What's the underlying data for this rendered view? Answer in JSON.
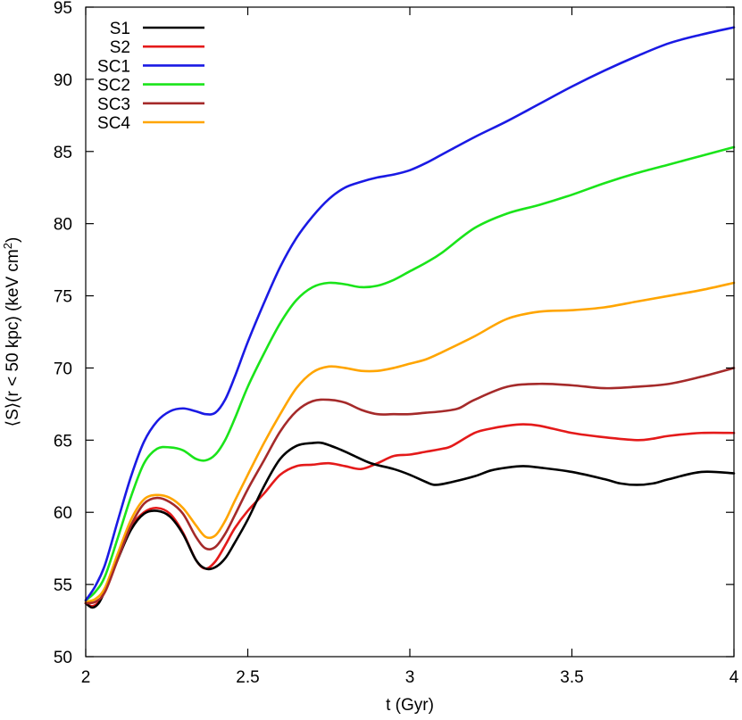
{
  "chart_data": {
    "type": "line",
    "xlabel": "t (Gyr)",
    "ylabel": "⟨S⟩(r < 50 kpc) (keV cm",
    "ylabel_sup": "2",
    "ylabel_close": ")",
    "xlim": [
      2,
      4
    ],
    "ylim": [
      50,
      95
    ],
    "xticks": [
      2,
      2.5,
      3,
      3.5,
      4
    ],
    "xtick_labels": [
      "2",
      "2.5",
      "3",
      "3.5",
      "4"
    ],
    "yticks": [
      50,
      55,
      60,
      65,
      70,
      75,
      80,
      85,
      90,
      95
    ],
    "ytick_labels": [
      "50",
      "55",
      "60",
      "65",
      "70",
      "75",
      "80",
      "85",
      "90",
      "95"
    ],
    "grid": false,
    "legend_position": "top-left",
    "series": [
      {
        "name": "S1",
        "color": "#000000",
        "x": [
          2.0,
          2.02,
          2.04,
          2.06,
          2.1,
          2.14,
          2.18,
          2.22,
          2.26,
          2.3,
          2.34,
          2.37,
          2.4,
          2.43,
          2.46,
          2.5,
          2.55,
          2.6,
          2.65,
          2.7,
          2.73,
          2.78,
          2.82,
          2.88,
          2.95,
          3.0,
          3.05,
          3.08,
          3.13,
          3.2,
          3.25,
          3.3,
          3.35,
          3.4,
          3.5,
          3.6,
          3.65,
          3.7,
          3.75,
          3.8,
          3.9,
          4.0
        ],
        "y": [
          53.7,
          53.4,
          53.7,
          54.6,
          56.8,
          58.8,
          59.9,
          60.1,
          59.7,
          58.5,
          56.7,
          56.1,
          56.2,
          56.8,
          57.9,
          59.5,
          61.8,
          63.7,
          64.6,
          64.8,
          64.8,
          64.4,
          64.0,
          63.4,
          63.0,
          62.6,
          62.1,
          61.9,
          62.1,
          62.5,
          62.9,
          63.1,
          63.2,
          63.1,
          62.8,
          62.3,
          62.0,
          61.9,
          62.0,
          62.3,
          62.8,
          62.7
        ]
      },
      {
        "name": "S2",
        "color": "#e41a1a",
        "x": [
          2.0,
          2.02,
          2.04,
          2.06,
          2.1,
          2.14,
          2.18,
          2.22,
          2.26,
          2.3,
          2.34,
          2.37,
          2.4,
          2.43,
          2.46,
          2.5,
          2.55,
          2.6,
          2.65,
          2.7,
          2.75,
          2.8,
          2.85,
          2.9,
          2.95,
          3.0,
          3.05,
          3.1,
          3.13,
          3.2,
          3.25,
          3.3,
          3.35,
          3.4,
          3.5,
          3.6,
          3.7,
          3.75,
          3.8,
          3.9,
          4.0
        ],
        "y": [
          53.7,
          53.5,
          53.8,
          54.7,
          57.0,
          59.0,
          60.0,
          60.3,
          59.9,
          58.6,
          56.7,
          56.1,
          56.6,
          57.7,
          58.9,
          60.1,
          61.3,
          62.6,
          63.2,
          63.3,
          63.4,
          63.2,
          63.0,
          63.4,
          63.9,
          64.0,
          64.2,
          64.4,
          64.6,
          65.5,
          65.8,
          66.0,
          66.1,
          66.0,
          65.5,
          65.2,
          65.0,
          65.1,
          65.3,
          65.5,
          65.5
        ]
      },
      {
        "name": "SC1",
        "color": "#1a1ae4",
        "x": [
          2.0,
          2.03,
          2.06,
          2.1,
          2.14,
          2.18,
          2.22,
          2.26,
          2.3,
          2.34,
          2.37,
          2.4,
          2.43,
          2.46,
          2.5,
          2.55,
          2.6,
          2.65,
          2.7,
          2.75,
          2.8,
          2.85,
          2.9,
          2.95,
          3.0,
          3.05,
          3.1,
          3.2,
          3.3,
          3.4,
          3.5,
          3.6,
          3.7,
          3.8,
          3.9,
          4.0
        ],
        "y": [
          53.9,
          54.9,
          56.4,
          59.5,
          62.5,
          64.9,
          66.3,
          67.0,
          67.2,
          67.0,
          66.8,
          66.9,
          67.8,
          69.4,
          71.8,
          74.5,
          77.0,
          79.0,
          80.5,
          81.7,
          82.5,
          82.9,
          83.2,
          83.4,
          83.7,
          84.2,
          84.8,
          86.0,
          87.1,
          88.3,
          89.5,
          90.6,
          91.6,
          92.5,
          93.1,
          93.6
        ]
      },
      {
        "name": "SC2",
        "color": "#1ae41a",
        "x": [
          2.0,
          2.03,
          2.06,
          2.1,
          2.14,
          2.18,
          2.22,
          2.26,
          2.3,
          2.34,
          2.37,
          2.4,
          2.43,
          2.46,
          2.5,
          2.55,
          2.6,
          2.65,
          2.7,
          2.75,
          2.8,
          2.85,
          2.9,
          2.95,
          3.0,
          3.05,
          3.1,
          3.2,
          3.3,
          3.4,
          3.5,
          3.6,
          3.7,
          3.8,
          3.9,
          4.0
        ],
        "y": [
          53.9,
          54.5,
          55.6,
          58.3,
          61.1,
          63.4,
          64.4,
          64.5,
          64.3,
          63.7,
          63.6,
          64.0,
          65.0,
          66.5,
          68.7,
          71.0,
          73.1,
          74.7,
          75.6,
          75.9,
          75.8,
          75.6,
          75.7,
          76.1,
          76.7,
          77.3,
          78.0,
          79.7,
          80.7,
          81.3,
          82.0,
          82.8,
          83.5,
          84.1,
          84.7,
          85.3
        ]
      },
      {
        "name": "SC3",
        "color": "#a52a2a",
        "x": [
          2.0,
          2.03,
          2.06,
          2.1,
          2.14,
          2.18,
          2.22,
          2.26,
          2.3,
          2.34,
          2.37,
          2.4,
          2.43,
          2.46,
          2.5,
          2.55,
          2.6,
          2.65,
          2.7,
          2.75,
          2.8,
          2.85,
          2.9,
          2.95,
          3.0,
          3.05,
          3.1,
          3.15,
          3.2,
          3.3,
          3.4,
          3.5,
          3.6,
          3.7,
          3.8,
          3.9,
          4.0
        ],
        "y": [
          53.7,
          53.8,
          54.5,
          56.8,
          59.1,
          60.6,
          61.0,
          60.7,
          59.9,
          58.3,
          57.5,
          57.6,
          58.5,
          59.8,
          61.6,
          63.6,
          65.6,
          67.0,
          67.7,
          67.8,
          67.6,
          67.1,
          66.8,
          66.8,
          66.8,
          66.9,
          67.0,
          67.2,
          67.8,
          68.7,
          68.9,
          68.8,
          68.6,
          68.7,
          68.9,
          69.4,
          70.0
        ]
      },
      {
        "name": "SC4",
        "color": "#ffa500",
        "x": [
          2.0,
          2.03,
          2.06,
          2.1,
          2.14,
          2.18,
          2.22,
          2.26,
          2.3,
          2.34,
          2.37,
          2.4,
          2.43,
          2.46,
          2.5,
          2.55,
          2.6,
          2.65,
          2.7,
          2.75,
          2.8,
          2.85,
          2.9,
          2.95,
          3.0,
          3.05,
          3.1,
          3.2,
          3.3,
          3.4,
          3.5,
          3.6,
          3.7,
          3.8,
          3.9,
          4.0
        ],
        "y": [
          53.8,
          54.0,
          54.8,
          57.2,
          59.5,
          60.9,
          61.2,
          61.0,
          60.3,
          59.1,
          58.3,
          58.4,
          59.4,
          60.8,
          62.6,
          64.8,
          66.8,
          68.6,
          69.7,
          70.1,
          70.0,
          69.8,
          69.8,
          70.0,
          70.3,
          70.6,
          71.1,
          72.2,
          73.4,
          73.9,
          74.0,
          74.2,
          74.6,
          75.0,
          75.4,
          75.9
        ]
      }
    ]
  }
}
